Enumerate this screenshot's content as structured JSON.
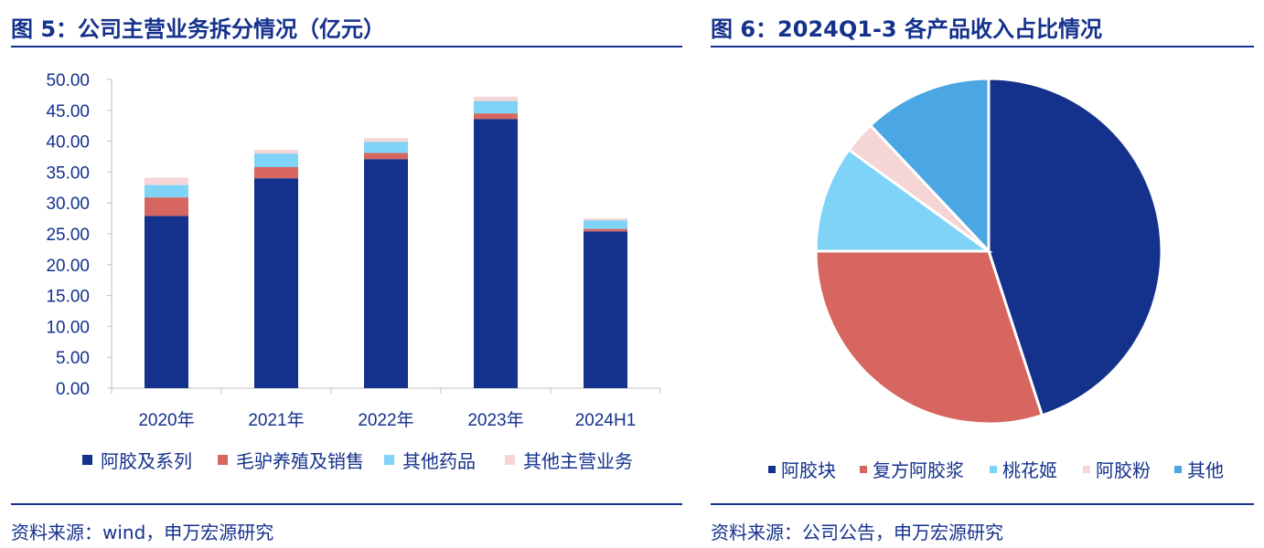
{
  "left": {
    "title": "图 5：公司主营业务拆分情况（亿元）",
    "source": "资料来源：wind，申万宏源研究"
  },
  "right": {
    "title": "图 6：2024Q1-3 各产品收入占比情况",
    "source": "资料来源：公司公告，申万宏源研究"
  },
  "chart_data": [
    {
      "type": "bar",
      "stacked": true,
      "categories": [
        "2020年",
        "2021年",
        "2022年",
        "2023年",
        "2024H1"
      ],
      "ylim": [
        0,
        50
      ],
      "yticks": [
        "0.00",
        "5.00",
        "10.00",
        "15.00",
        "20.00",
        "25.00",
        "30.00",
        "35.00",
        "40.00",
        "45.00",
        "50.00"
      ],
      "grid": false,
      "legend": "bottom",
      "series": [
        {
          "name": "阿胶及系列",
          "color": "#14318c",
          "values": [
            27.9,
            34.0,
            37.1,
            43.6,
            25.4
          ]
        },
        {
          "name": "毛驴养殖及销售",
          "color": "#d6665f",
          "values": [
            3.0,
            1.8,
            1.0,
            0.9,
            0.4
          ]
        },
        {
          "name": "其他药品",
          "color": "#7fd3f7",
          "values": [
            2.0,
            2.2,
            1.8,
            2.0,
            1.4
          ]
        },
        {
          "name": "其他主营业务",
          "color": "#f5d5d6",
          "values": [
            1.2,
            0.6,
            0.6,
            0.7,
            0.3
          ]
        }
      ]
    },
    {
      "type": "pie",
      "legend": "bottom",
      "slices": [
        {
          "name": "阿胶块",
          "value": 45,
          "color": "#14318c"
        },
        {
          "name": "复方阿胶浆",
          "value": 30,
          "color": "#d6665f"
        },
        {
          "name": "桃花姬",
          "value": 10,
          "color": "#7fd3f7"
        },
        {
          "name": "阿胶粉",
          "value": 3,
          "color": "#f5d5d6"
        },
        {
          "name": "其他",
          "value": 12,
          "color": "#4ba7e3"
        }
      ]
    }
  ]
}
